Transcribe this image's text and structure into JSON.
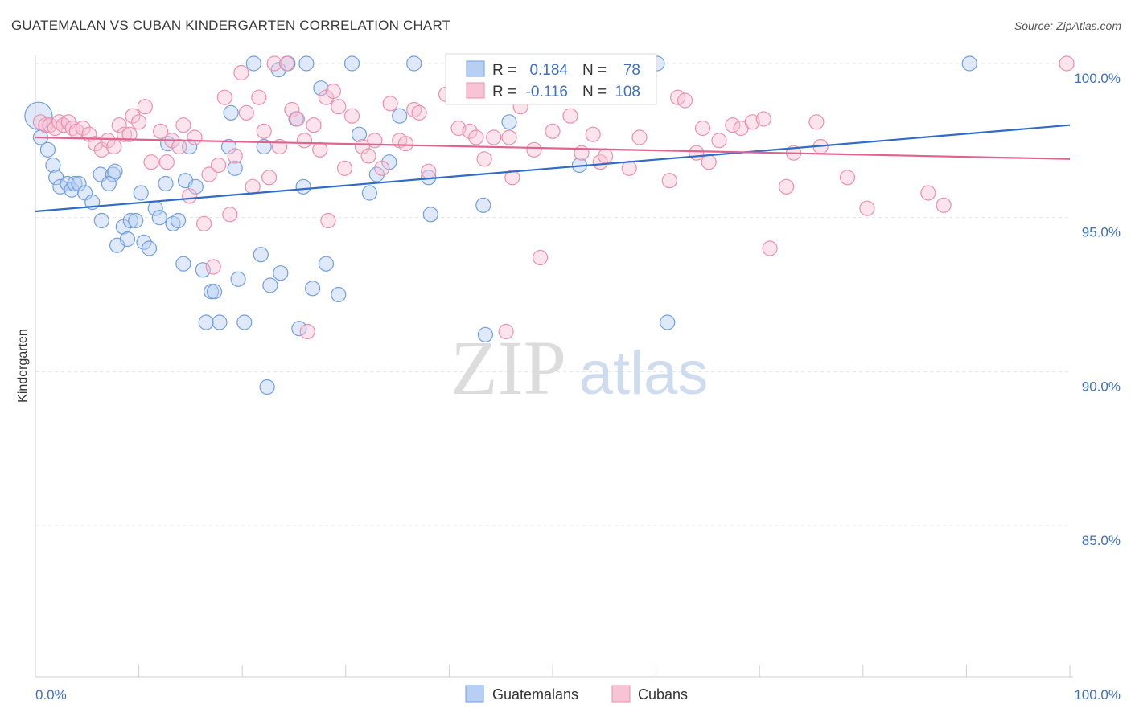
{
  "title": "GUATEMALAN VS CUBAN KINDERGARTEN CORRELATION CHART",
  "source": "Source: ZipAtlas.com",
  "chart_data": {
    "type": "scatter",
    "ylabel": "Kindergarten",
    "xlim": [
      0,
      100
    ],
    "ylim": [
      80.5,
      100.8
    ],
    "x_tick_labels": [
      "0.0%",
      "100.0%"
    ],
    "y_ticks": [
      {
        "value": 100,
        "label": "100.0%"
      },
      {
        "value": 95,
        "label": "95.0%"
      },
      {
        "value": 90,
        "label": "90.0%"
      },
      {
        "value": 85,
        "label": "85.0%"
      }
    ],
    "grid": true,
    "watermark": {
      "zip": "ZIP",
      "atlas": "atlas"
    },
    "legend": {
      "r_label": "R =",
      "n_label": "N =",
      "entries": [
        {
          "r": "0.184",
          "n": "78"
        },
        {
          "r": "-0.116",
          "n": "108"
        }
      ]
    },
    "series": [
      {
        "name": "Guatemalans",
        "color": "#6f9fe0",
        "fill": "#b7cff2",
        "line_color": "#2f6cc6",
        "trend": {
          "x": [
            0,
            100
          ],
          "y": [
            95.2,
            98.0
          ]
        },
        "points": [
          [
            0.3,
            98.3
          ],
          [
            0.5,
            97.6
          ],
          [
            1.2,
            97.2
          ],
          [
            1.7,
            96.7
          ],
          [
            2.0,
            96.3
          ],
          [
            2.4,
            96.0
          ],
          [
            3.1,
            96.1
          ],
          [
            3.5,
            95.9
          ],
          [
            3.8,
            96.1
          ],
          [
            4.2,
            96.1
          ],
          [
            4.8,
            95.8
          ],
          [
            5.5,
            95.5
          ],
          [
            6.3,
            96.4
          ],
          [
            6.4,
            94.9
          ],
          [
            7.5,
            96.4
          ],
          [
            7.1,
            96.1
          ],
          [
            7.7,
            96.5
          ],
          [
            7.9,
            94.1
          ],
          [
            8.5,
            94.7
          ],
          [
            8.9,
            94.3
          ],
          [
            9.2,
            94.9
          ],
          [
            9.7,
            94.9
          ],
          [
            10.2,
            95.8
          ],
          [
            10.5,
            94.2
          ],
          [
            11.0,
            94.0
          ],
          [
            11.6,
            95.3
          ],
          [
            12.0,
            95.0
          ],
          [
            12.6,
            96.1
          ],
          [
            12.8,
            97.4
          ],
          [
            13.3,
            94.8
          ],
          [
            13.8,
            94.9
          ],
          [
            14.3,
            93.5
          ],
          [
            14.5,
            96.2
          ],
          [
            14.9,
            97.3
          ],
          [
            15.5,
            96.0
          ],
          [
            16.2,
            93.3
          ],
          [
            16.5,
            91.6
          ],
          [
            17.0,
            92.6
          ],
          [
            17.3,
            92.6
          ],
          [
            17.8,
            91.6
          ],
          [
            18.7,
            97.3
          ],
          [
            18.9,
            98.4
          ],
          [
            19.3,
            96.6
          ],
          [
            19.6,
            93.0
          ],
          [
            20.2,
            91.6
          ],
          [
            21.1,
            100.0
          ],
          [
            21.8,
            93.8
          ],
          [
            22.1,
            97.3
          ],
          [
            22.4,
            89.5
          ],
          [
            22.7,
            92.8
          ],
          [
            23.5,
            99.8
          ],
          [
            23.7,
            93.2
          ],
          [
            24.4,
            100.0
          ],
          [
            25.2,
            98.2
          ],
          [
            25.5,
            91.4
          ],
          [
            25.9,
            96.0
          ],
          [
            26.2,
            100.0
          ],
          [
            26.8,
            92.7
          ],
          [
            27.6,
            99.2
          ],
          [
            28.1,
            93.5
          ],
          [
            29.3,
            92.5
          ],
          [
            30.6,
            100.0
          ],
          [
            31.3,
            97.7
          ],
          [
            32.3,
            95.8
          ],
          [
            33.0,
            96.4
          ],
          [
            34.2,
            96.8
          ],
          [
            35.2,
            98.3
          ],
          [
            36.6,
            100.0
          ],
          [
            38.0,
            96.3
          ],
          [
            38.2,
            95.1
          ],
          [
            43.3,
            95.4
          ],
          [
            43.5,
            91.2
          ],
          [
            45.8,
            98.1
          ],
          [
            52.0,
            100.0
          ],
          [
            52.6,
            96.7
          ],
          [
            60.1,
            100.0
          ],
          [
            61.1,
            91.6
          ],
          [
            90.3,
            100.0
          ]
        ]
      },
      {
        "name": "Cubans",
        "color": "#ec8fae",
        "fill": "#f7c3d5",
        "line_color": "#e2628e",
        "trend": {
          "x": [
            0,
            100
          ],
          "y": [
            97.6,
            96.9
          ]
        },
        "points": [
          [
            0.5,
            98.1
          ],
          [
            1.0,
            98.0
          ],
          [
            1.4,
            98.0
          ],
          [
            1.9,
            97.9
          ],
          [
            2.3,
            98.1
          ],
          [
            2.7,
            98.0
          ],
          [
            3.2,
            98.1
          ],
          [
            3.6,
            97.9
          ],
          [
            4.0,
            97.8
          ],
          [
            4.6,
            97.9
          ],
          [
            5.2,
            97.7
          ],
          [
            5.8,
            97.4
          ],
          [
            6.4,
            97.2
          ],
          [
            7.0,
            97.5
          ],
          [
            7.6,
            97.3
          ],
          [
            8.1,
            98.0
          ],
          [
            8.6,
            97.7
          ],
          [
            9.1,
            97.7
          ],
          [
            9.4,
            98.3
          ],
          [
            10.0,
            98.1
          ],
          [
            10.6,
            98.6
          ],
          [
            11.2,
            96.8
          ],
          [
            12.1,
            97.8
          ],
          [
            12.7,
            96.8
          ],
          [
            13.2,
            97.5
          ],
          [
            13.9,
            97.3
          ],
          [
            14.3,
            98.0
          ],
          [
            14.9,
            95.7
          ],
          [
            15.4,
            97.6
          ],
          [
            16.3,
            94.8
          ],
          [
            16.8,
            96.4
          ],
          [
            17.2,
            93.4
          ],
          [
            17.7,
            96.7
          ],
          [
            18.3,
            98.9
          ],
          [
            18.8,
            95.1
          ],
          [
            19.3,
            97.0
          ],
          [
            19.9,
            99.7
          ],
          [
            20.4,
            98.4
          ],
          [
            21.0,
            96.0
          ],
          [
            21.6,
            98.9
          ],
          [
            22.1,
            97.8
          ],
          [
            22.6,
            96.3
          ],
          [
            23.1,
            100.0
          ],
          [
            23.6,
            97.3
          ],
          [
            24.3,
            100.0
          ],
          [
            24.8,
            98.5
          ],
          [
            25.3,
            98.2
          ],
          [
            26.0,
            97.5
          ],
          [
            26.3,
            91.3
          ],
          [
            26.9,
            98.0
          ],
          [
            27.5,
            97.2
          ],
          [
            28.1,
            98.9
          ],
          [
            28.3,
            94.9
          ],
          [
            28.8,
            99.1
          ],
          [
            29.3,
            98.6
          ],
          [
            29.9,
            96.6
          ],
          [
            30.6,
            98.3
          ],
          [
            31.6,
            97.3
          ],
          [
            32.2,
            97.0
          ],
          [
            32.8,
            97.5
          ],
          [
            33.5,
            96.6
          ],
          [
            34.3,
            98.7
          ],
          [
            35.2,
            97.5
          ],
          [
            35.8,
            97.4
          ],
          [
            36.6,
            98.5
          ],
          [
            37.1,
            98.4
          ],
          [
            38.0,
            96.5
          ],
          [
            39.7,
            99.0
          ],
          [
            40.9,
            97.9
          ],
          [
            42.0,
            97.8
          ],
          [
            42.6,
            97.6
          ],
          [
            43.4,
            96.9
          ],
          [
            44.3,
            97.6
          ],
          [
            45.5,
            91.3
          ],
          [
            45.8,
            97.6
          ],
          [
            46.1,
            96.3
          ],
          [
            46.9,
            98.6
          ],
          [
            48.2,
            97.2
          ],
          [
            48.8,
            93.7
          ],
          [
            50.0,
            97.8
          ],
          [
            51.7,
            98.3
          ],
          [
            52.8,
            97.1
          ],
          [
            53.9,
            97.7
          ],
          [
            54.6,
            96.8
          ],
          [
            55.1,
            97.0
          ],
          [
            57.4,
            96.6
          ],
          [
            58.4,
            97.6
          ],
          [
            61.3,
            96.2
          ],
          [
            62.1,
            98.9
          ],
          [
            62.8,
            98.8
          ],
          [
            63.9,
            97.1
          ],
          [
            64.5,
            97.9
          ],
          [
            65.1,
            96.8
          ],
          [
            66.1,
            97.5
          ],
          [
            67.4,
            98.0
          ],
          [
            68.2,
            97.9
          ],
          [
            69.3,
            98.1
          ],
          [
            70.4,
            98.2
          ],
          [
            71.0,
            94.0
          ],
          [
            72.6,
            96.0
          ],
          [
            73.3,
            97.1
          ],
          [
            75.5,
            98.1
          ],
          [
            75.9,
            97.3
          ],
          [
            78.5,
            96.3
          ],
          [
            80.4,
            95.3
          ],
          [
            86.3,
            95.8
          ],
          [
            87.8,
            95.4
          ],
          [
            99.7,
            100.0
          ]
        ]
      }
    ]
  }
}
